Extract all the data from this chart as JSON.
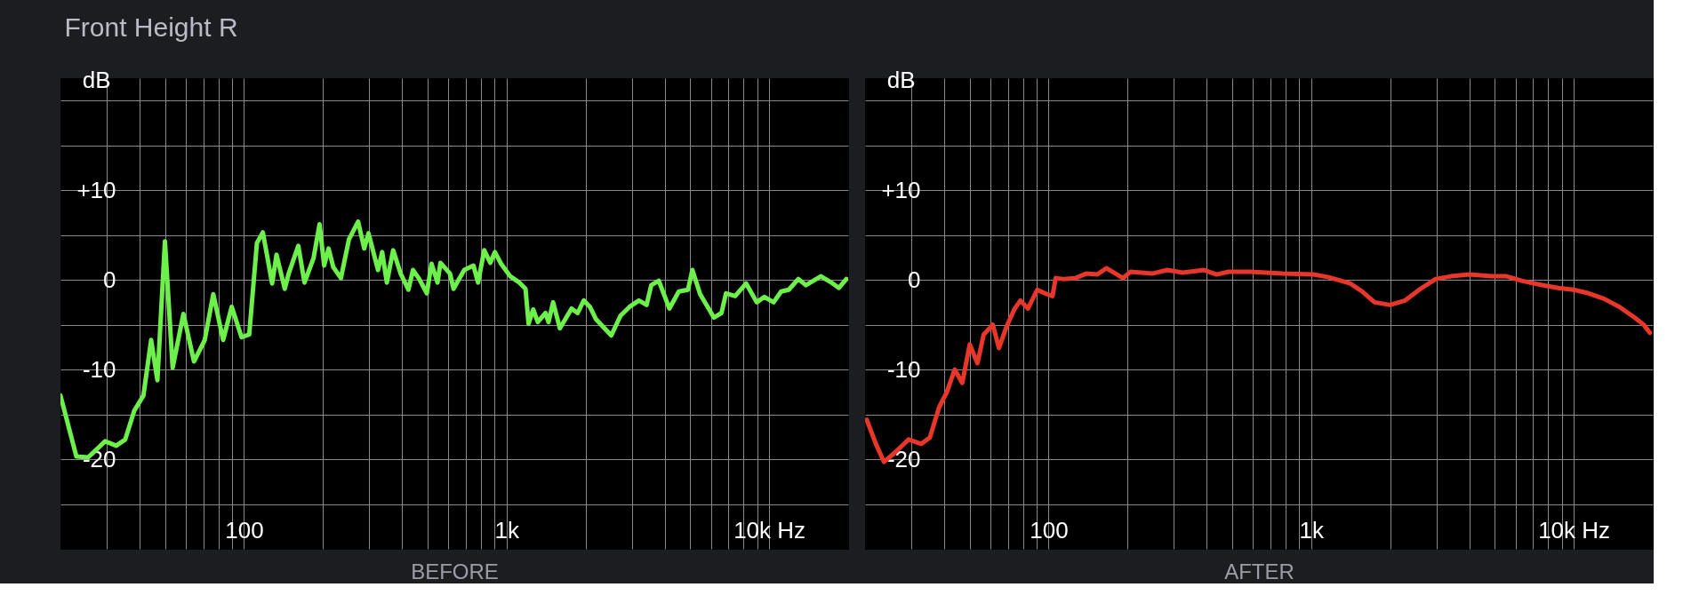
{
  "chart_data": [
    {
      "type": "line",
      "title": "Front Height R",
      "xlabel": "BEFORE",
      "ylabel": "dB",
      "log": "x",
      "grid": true,
      "xlim": [
        20,
        20000
      ],
      "ylim": [
        -30,
        22.5
      ],
      "xticks": [
        {
          "value": 30,
          "label": null
        },
        {
          "value": 40,
          "label": null
        },
        {
          "value": 50,
          "label": null
        },
        {
          "value": 60,
          "label": null
        },
        {
          "value": 70,
          "label": null
        },
        {
          "value": 80,
          "label": null
        },
        {
          "value": 90,
          "label": null
        },
        100,
        {
          "value": 200,
          "label": null
        },
        {
          "value": 300,
          "label": null
        },
        {
          "value": 400,
          "label": null
        },
        {
          "value": 500,
          "label": null
        },
        {
          "value": 600,
          "label": null
        },
        {
          "value": 700,
          "label": null
        },
        {
          "value": 800,
          "label": null
        },
        {
          "value": 900,
          "label": null
        },
        {
          "value": 1000,
          "label": "1k"
        },
        {
          "value": 2000,
          "label": null
        },
        {
          "value": 3000,
          "label": null
        },
        {
          "value": 4000,
          "label": null
        },
        {
          "value": 5000,
          "label": null
        },
        {
          "value": 6000,
          "label": null
        },
        {
          "value": 7000,
          "label": null
        },
        {
          "value": 8000,
          "label": null
        },
        {
          "value": 9000,
          "label": null
        },
        {
          "value": 10000,
          "label": "10k Hz"
        }
      ],
      "yticks": [
        {
          "value": 20,
          "label": null
        },
        {
          "value": 15,
          "label": null
        },
        {
          "value": 10,
          "label": "+10"
        },
        {
          "value": 5,
          "label": null
        },
        0,
        {
          "value": -5,
          "label": null
        },
        -10,
        {
          "value": -15,
          "label": null
        },
        -20,
        {
          "value": -25,
          "label": null
        }
      ],
      "series": [
        {
          "color": "#6ef04a",
          "x": [
            20,
            23,
            25.5,
            29.6,
            32.6,
            35.3,
            38.2,
            41.4,
            44.3,
            46.8,
            50,
            53.5,
            58.8,
            64.5,
            70.9,
            76.4,
            83.3,
            89.8,
            97.9,
            104.7,
            112,
            118,
            128,
            133,
            143,
            148,
            161,
            170,
            184,
            194,
            202,
            210,
            219,
            234,
            251,
            272,
            287,
            298,
            324,
            336,
            350,
            370,
            395,
            423,
            440,
            465,
            497,
            518,
            546,
            560,
            609,
            628,
            690,
            748,
            779,
            822,
            867,
            903,
            953,
            1033,
            1119,
            1181,
            1213,
            1263,
            1315,
            1407,
            1445,
            1504,
            1596,
            1768,
            1865,
            1968,
            2077,
            2192,
            2505,
            2716,
            2943,
            3192,
            3414,
            3557,
            3799,
            4170,
            4528,
            4908,
            5102,
            5460,
            6160,
            6582,
            6852,
            7423,
            8175,
            8973,
            9594,
            10400,
            11110,
            11880,
            12920,
            13800,
            14740,
            15740,
            17270,
            18440,
            19700
          ],
          "values": [
            -12.9,
            -19.7,
            -19.8,
            -18.0,
            -18.5,
            -17.8,
            -14.6,
            -12.9,
            -6.7,
            -11.2,
            4.3,
            -9.8,
            -3.8,
            -9.1,
            -6.7,
            -1.6,
            -6.7,
            -3.0,
            -6.4,
            -6.1,
            4.1,
            5.3,
            -0.4,
            2.8,
            -1.0,
            0.7,
            3.8,
            -0.3,
            2.4,
            6.2,
            1.6,
            3.5,
            1.4,
            0.2,
            4.5,
            6.5,
            3.5,
            5.2,
            1.1,
            3.1,
            -0.3,
            3.3,
            0.7,
            -1.1,
            1.1,
            0.1,
            -1.5,
            1.8,
            -0.3,
            1.9,
            0.7,
            -1.0,
            1.1,
            1.6,
            -0.3,
            3.3,
            1.9,
            3.1,
            1.8,
            0.4,
            -0.3,
            -1.0,
            -4.9,
            -3.3,
            -4.7,
            -3.7,
            -4.7,
            -2.5,
            -5.4,
            -3.2,
            -3.7,
            -2.3,
            -3.0,
            -4.4,
            -6.2,
            -4.0,
            -3.0,
            -2.3,
            -2.8,
            -0.6,
            -0.1,
            -3.2,
            -1.3,
            -1.1,
            1.1,
            -1.6,
            -4.2,
            -3.7,
            -1.5,
            -1.8,
            -0.4,
            -2.5,
            -1.9,
            -2.5,
            -1.3,
            -1.1,
            0.1,
            -0.6,
            -0.1,
            0.4,
            -0.3,
            -0.9,
            0.1
          ]
        }
      ]
    },
    {
      "type": "line",
      "xlabel": "AFTER",
      "ylabel": "dB",
      "log": "x",
      "grid": true,
      "xlim": [
        20,
        20000
      ],
      "ylim": [
        -30,
        22.5
      ],
      "xticks": [
        {
          "value": 30,
          "label": null
        },
        {
          "value": 40,
          "label": null
        },
        {
          "value": 50,
          "label": null
        },
        {
          "value": 60,
          "label": null
        },
        {
          "value": 70,
          "label": null
        },
        {
          "value": 80,
          "label": null
        },
        {
          "value": 90,
          "label": null
        },
        100,
        {
          "value": 200,
          "label": null
        },
        {
          "value": 300,
          "label": null
        },
        {
          "value": 400,
          "label": null
        },
        {
          "value": 500,
          "label": null
        },
        {
          "value": 600,
          "label": null
        },
        {
          "value": 700,
          "label": null
        },
        {
          "value": 800,
          "label": null
        },
        {
          "value": 900,
          "label": null
        },
        {
          "value": 1000,
          "label": "1k"
        },
        {
          "value": 2000,
          "label": null
        },
        {
          "value": 3000,
          "label": null
        },
        {
          "value": 4000,
          "label": null
        },
        {
          "value": 5000,
          "label": null
        },
        {
          "value": 6000,
          "label": null
        },
        {
          "value": 7000,
          "label": null
        },
        {
          "value": 8000,
          "label": null
        },
        {
          "value": 9000,
          "label": null
        },
        {
          "value": 10000,
          "label": "10k Hz"
        }
      ],
      "yticks": [
        {
          "value": 20,
          "label": null
        },
        {
          "value": 15,
          "label": null
        },
        {
          "value": 10,
          "label": "+10"
        },
        {
          "value": 5,
          "label": null
        },
        0,
        {
          "value": -5,
          "label": null
        },
        -10,
        {
          "value": -15,
          "label": null
        },
        -20,
        {
          "value": -25,
          "label": null
        }
      ],
      "series": [
        {
          "color": "#e8372a",
          "x": [
            20.3,
            22,
            23.6,
            25.9,
            29.3,
            32.7,
            35.3,
            38.3,
            41,
            43.9,
            46.9,
            50.1,
            53.6,
            56.6,
            61.3,
            64.7,
            69.2,
            74,
            78.1,
            83.5,
            90.5,
            96.8,
            103.5,
            106.4,
            113.8,
            126.6,
            139,
            153,
            166,
            180,
            192,
            205,
            248,
            283,
            324,
            391,
            436,
            485,
            585,
            779,
            1019,
            1166,
            1407,
            1566,
            1744,
            1995,
            2279,
            2607,
            2981,
            3410,
            4011,
            4837,
            5538,
            6330,
            7632,
            8726,
            9978,
            11400,
            13040,
            14910,
            17050,
            18470,
            19490
          ],
          "values": [
            -15.6,
            -18.3,
            -20.3,
            -19.3,
            -17.8,
            -18.3,
            -17.6,
            -14.2,
            -12.5,
            -10.0,
            -11.5,
            -7.2,
            -9.3,
            -6.1,
            -5.0,
            -7.6,
            -5.2,
            -3.3,
            -2.3,
            -3.2,
            -1.1,
            -1.5,
            -1.8,
            0.2,
            0.1,
            0.2,
            0.7,
            0.6,
            1.3,
            0.7,
            0.2,
            0.9,
            0.7,
            1.1,
            0.8,
            1.1,
            0.6,
            0.9,
            0.9,
            0.7,
            0.6,
            0.3,
            -0.4,
            -1.3,
            -2.5,
            -2.8,
            -2.3,
            -1.0,
            0.1,
            0.4,
            0.6,
            0.4,
            0.4,
            -0.1,
            -0.6,
            -0.9,
            -1.1,
            -1.5,
            -2.1,
            -3.0,
            -4.2,
            -5.0,
            -5.9
          ]
        }
      ]
    }
  ]
}
